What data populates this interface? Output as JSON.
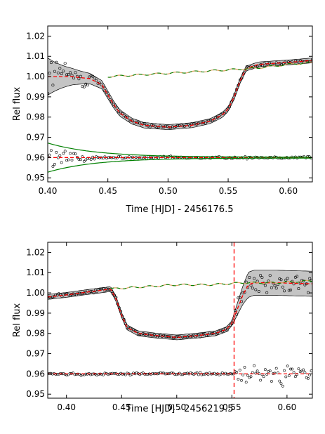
{
  "chart_data": [
    {
      "type": "scatter",
      "xlabel": "Time [HJD] - 2456176.5",
      "ylabel": "Rel flux",
      "xlim": [
        0.4,
        0.62
      ],
      "ylim": [
        0.948,
        1.025
      ],
      "x_ticks": [
        "0.40",
        "0.45",
        "0.50",
        "0.55",
        "0.60"
      ],
      "y_ticks": [
        "1.02",
        "1.01",
        "1.00",
        "0.99",
        "0.98",
        "0.97",
        "0.96",
        "0.95"
      ],
      "grid": false,
      "transit_curve": {
        "x": [
          0.4,
          0.42,
          0.435,
          0.445,
          0.455,
          0.46,
          0.47,
          0.48,
          0.5,
          0.52,
          0.535,
          0.545,
          0.55,
          0.555,
          0.56,
          0.565,
          0.575,
          0.6,
          0.62
        ],
        "y": [
          1.0,
          1.0,
          0.999,
          0.996,
          0.986,
          0.982,
          0.978,
          0.976,
          0.975,
          0.976,
          0.978,
          0.981,
          0.984,
          0.99,
          0.998,
          1.004,
          1.006,
          1.007,
          1.008
        ]
      },
      "baseline_model": {
        "x": [
          0.45,
          0.48,
          0.51,
          0.54,
          0.57,
          0.6,
          0.62
        ],
        "y": [
          1.0,
          1.001,
          1.002,
          1.003,
          1.004,
          1.006,
          1.007
        ]
      },
      "residual_offset": 0.96,
      "early_scatter": {
        "x_end": 0.44,
        "flux_sigma": 0.008,
        "residual_sigma": 0.005
      },
      "envelope_start_halfwidth": 0.008,
      "band_start_halfwidth": 0.007,
      "band_decay": 0.04,
      "colors": {
        "data": "#000000",
        "model": "#ff0000",
        "baseline": "#008000",
        "band": "#008000",
        "envelope": "#b0b0b0"
      }
    },
    {
      "type": "scatter",
      "xlabel": "Time [HJD] - 2456219.5",
      "ylabel": "Rel flux",
      "xlim": [
        0.383,
        0.623
      ],
      "ylim": [
        0.948,
        1.025
      ],
      "x_ticks": [
        "0.40",
        "0.45",
        "0.50",
        "0.55",
        "0.60"
      ],
      "y_ticks": [
        "1.02",
        "1.01",
        "1.00",
        "0.99",
        "0.98",
        "0.97",
        "0.96",
        "0.95"
      ],
      "grid": false,
      "transit_curve": {
        "x": [
          0.383,
          0.4,
          0.42,
          0.435,
          0.44,
          0.445,
          0.45,
          0.455,
          0.465,
          0.48,
          0.5,
          0.52,
          0.535,
          0.545,
          0.55,
          0.555,
          0.56,
          0.565,
          0.57,
          0.59,
          0.623
        ],
        "y": [
          0.998,
          0.999,
          1.0005,
          1.0015,
          1.002,
          0.997,
          0.989,
          0.983,
          0.98,
          0.979,
          0.978,
          0.979,
          0.98,
          0.982,
          0.985,
          0.992,
          0.999,
          1.004,
          1.005,
          1.005,
          1.0045
        ]
      },
      "baseline_model": {
        "x": [
          0.44,
          0.47,
          0.5,
          0.53,
          0.56,
          0.59,
          0.623
        ],
        "y": [
          1.002,
          1.003,
          1.004,
          1.004,
          1.005,
          1.005,
          1.006
        ]
      },
      "residual_offset": 0.96,
      "late_scatter": {
        "x_start": 0.552,
        "flux_sigma": 0.0035,
        "residual_sigma": 0.0035
      },
      "envelope_late_halfwidth": 0.005,
      "vertical_marker_x": 0.552,
      "colors": {
        "data": "#000000",
        "model": "#ff0000",
        "baseline": "#008000",
        "envelope": "#b0b0b0"
      }
    }
  ]
}
